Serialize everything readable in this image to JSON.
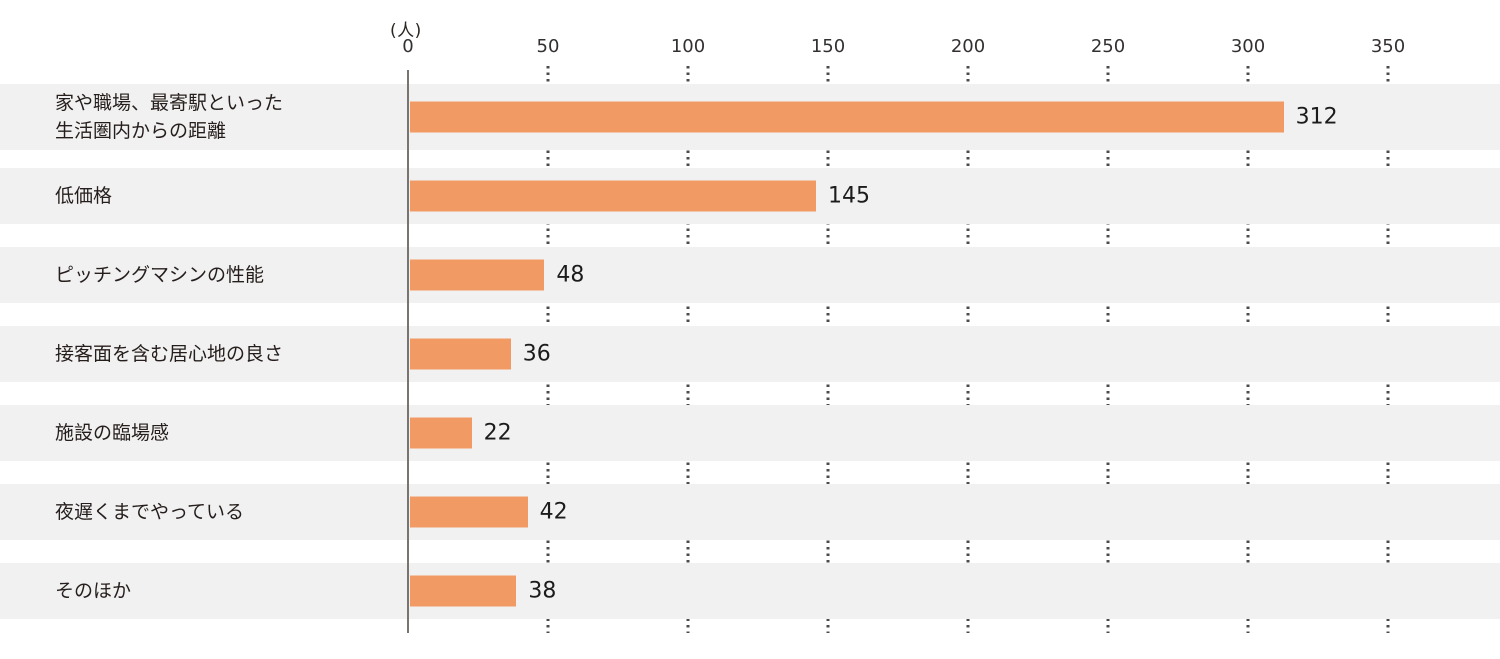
{
  "chart_data": {
    "type": "bar",
    "orientation": "horizontal",
    "title": "",
    "unit_label": "(人)",
    "categories": [
      "家や職場、最寄駅といった\n生活圏内からの距離",
      "低価格",
      "ピッチングマシンの性能",
      "接客面を含む居心地の良さ",
      "施設の臨場感",
      "夜遅くまでやっている",
      "そのほか"
    ],
    "values": [
      312,
      145,
      48,
      36,
      22,
      42,
      38
    ],
    "value_labels": [
      "312",
      "145",
      "48",
      "36",
      "22",
      "42",
      "38"
    ],
    "xlim": [
      0,
      350
    ],
    "xticks": [
      0,
      50,
      100,
      150,
      200,
      250,
      300,
      350
    ],
    "grid": "dotted-vertical-at-ticks",
    "legend": "none",
    "colors": {
      "bar": "#f29a63",
      "row_band": "#f1f1f1",
      "background": "#ffffff",
      "grid_dots": "#4d4a48",
      "axis_line": "#787470",
      "text": "#251e1c"
    }
  }
}
